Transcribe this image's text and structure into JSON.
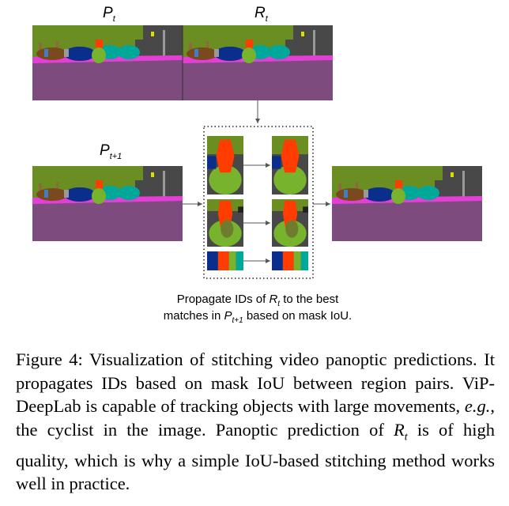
{
  "figure": {
    "label_pt": "P",
    "label_pt_sub": "t",
    "label_rt": "R",
    "label_rt_sub": "t",
    "label_pt1": "P",
    "label_pt1_sub": "t+1",
    "annotation_line1_prefix": "Propagate IDs of ",
    "annotation_line1_var": "R",
    "annotation_line1_var_sub": "t",
    "annotation_line1_suffix": " to the best",
    "annotation_line2_prefix": "matches in ",
    "annotation_line2_var": "P",
    "annotation_line2_var_sub": "t+1",
    "annotation_line2_suffix": " based on mask IoU."
  },
  "caption": {
    "lead": "Figure 4: Visualization of stitching video panoptic predictions. It propagates IDs based on mask IoU between region pairs. ViP-DeepLab is capable of tracking objects with large movements, ",
    "eg": "e.g.",
    "mid": ", the cyclist in the image. Panoptic prediction of ",
    "var": "R",
    "var_sub": "t",
    "tail": " is of high quality, which is why a simple IoU-based stitching method works well in practice."
  },
  "colors": {
    "road": "#7d4b7e",
    "sidewalk": "#e33fd6",
    "vegetation": "#6b8e23",
    "building": "#484848",
    "car": "#0a2e8c",
    "rider": "#ff3d00",
    "bicycle": "#77b32c",
    "teal_car": "#00a89a",
    "sky": "#3f7fbf"
  }
}
